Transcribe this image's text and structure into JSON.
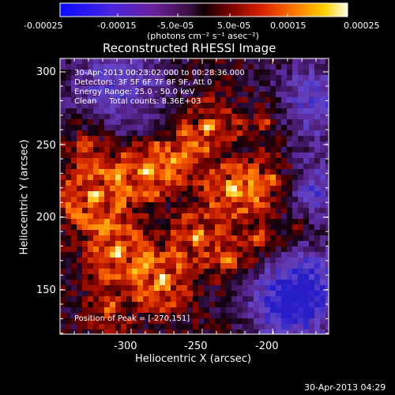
{
  "colorbar": {
    "tick_labels": [
      "-0.00025",
      "-0.00015",
      "-5.0e-05",
      "5.0e-05",
      "0.00015",
      "0.00025"
    ],
    "units_label": "(photons cm⁻² s⁻¹ asec⁻²)",
    "colormap": [
      "#1a1aff",
      "#5a20d0",
      "#6a1fa8",
      "#5a1a6a",
      "#200010",
      "#8a0000",
      "#d02000",
      "#ff6a00",
      "#ffc000",
      "#ffffd0"
    ]
  },
  "title": "Reconstructed RHESSI Image",
  "annotations": {
    "time_range": "30-Apr-2013 00:23:02.000 to 00:28:36.000",
    "detectors": "Detectors: 3F 5F 6F 7F 8F 9F, Att 0",
    "energy": "Energy Range: 25.0 - 50.0 keV",
    "clean": "Clean     Total counts: 8.36E+03",
    "peak": "Position of Peak = [-270,151]"
  },
  "x_axis": {
    "label": "Heliocentric X (arcsec)",
    "tick_labels": [
      "-300",
      "-250",
      "-200"
    ]
  },
  "y_axis": {
    "label": "Heliocentric Y (arcsec)",
    "tick_labels": [
      "300",
      "250",
      "200",
      "150"
    ]
  },
  "footer_timestamp": "30-Apr-2013 04:29"
}
